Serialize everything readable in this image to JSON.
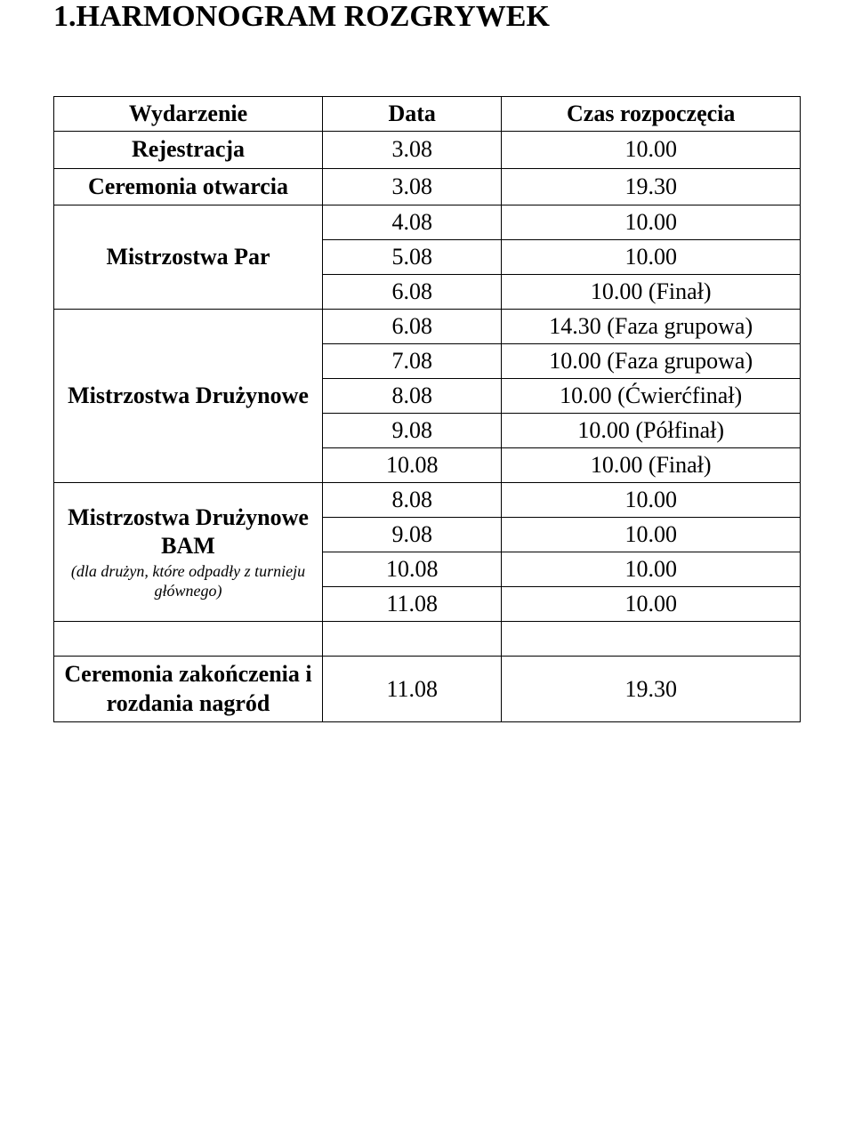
{
  "title": "1.HARMONOGRAM ROZGRYWEK",
  "headers": {
    "event": "Wydarzenie",
    "date": "Data",
    "time": "Czas rozpoczęcia"
  },
  "rows": {
    "registration": {
      "event": "Rejestracja",
      "date": "3.08",
      "time": "10.00"
    },
    "opening": {
      "event": "Ceremonia otwarcia",
      "date": "3.08",
      "time": "19.30"
    },
    "pairs": {
      "event": "Mistrzostwa Par",
      "r1": {
        "date": "4.08",
        "time": "10.00"
      },
      "r2": {
        "date": "5.08",
        "time": "10.00"
      },
      "r3": {
        "date": "6.08",
        "time": "10.00 (Finał)"
      }
    },
    "teams": {
      "event": "Mistrzostwa Drużynowe",
      "r1": {
        "date": "6.08",
        "time": "14.30 (Faza grupowa)"
      },
      "r2": {
        "date": "7.08",
        "time": "10.00 (Faza grupowa)"
      },
      "r3": {
        "date": "8.08",
        "time": "10.00 (Ćwierćfinał)"
      },
      "r4": {
        "date": "9.08",
        "time": "10.00 (Półfinał)"
      },
      "r5": {
        "date": "10.08",
        "time": "10.00 (Finał)"
      }
    },
    "bam": {
      "event_l1": "Mistrzostwa Drużynowe",
      "event_l2": "BAM",
      "event_sub": "(dla drużyn, które odpadły z turnieju głównego)",
      "r1": {
        "date": "8.08",
        "time": "10.00"
      },
      "r2": {
        "date": "9.08",
        "time": "10.00"
      },
      "r3": {
        "date": "10.08",
        "time": "10.00"
      },
      "r4": {
        "date": "11.08",
        "time": "10.00"
      }
    },
    "closing": {
      "event": "Ceremonia zakończenia i rozdania nagród",
      "date": "11.08",
      "time": "19.30"
    }
  },
  "colors": {
    "text": "#000000",
    "background": "#ffffff",
    "border": "#000000"
  },
  "fonts": {
    "family": "Times New Roman",
    "title_size_pt": 26,
    "header_size_pt": 20,
    "cell_size_pt": 20,
    "subnote_size_pt": 14
  }
}
